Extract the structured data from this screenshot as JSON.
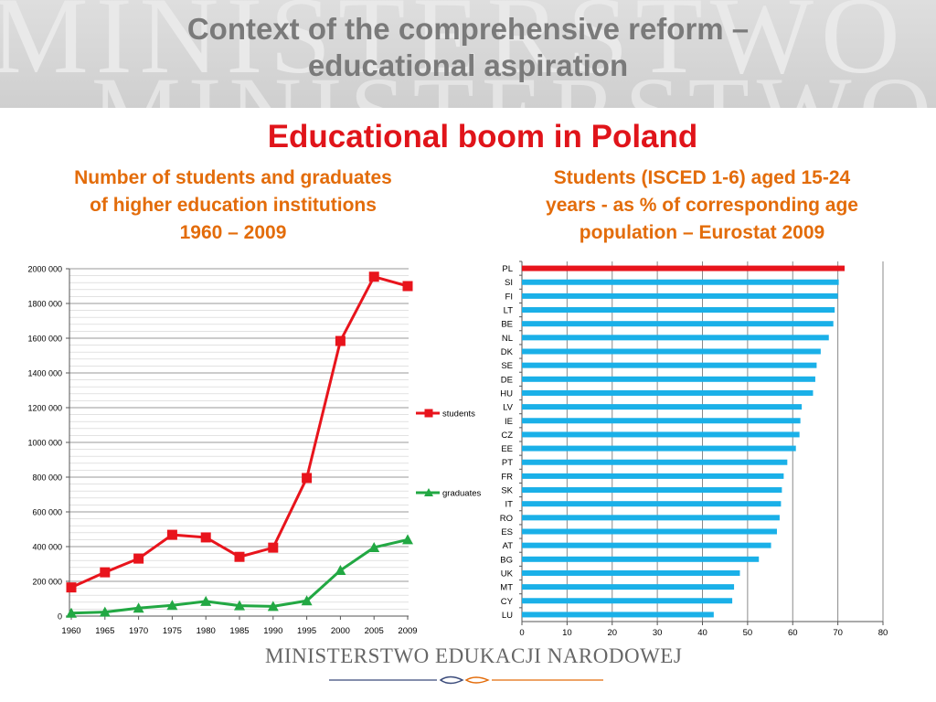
{
  "header": {
    "title_line1": "Context of the comprehensive reform –",
    "title_line2": "educational aspiration",
    "watermark_line1": "MINISTERSTWO",
    "watermark_line2": "MINISTERSTWO"
  },
  "subtitle": "Educational boom in Poland",
  "colors": {
    "title_gray": "#7a7a7a",
    "subtitle_red": "#e0141a",
    "chart_title_orange": "#e36c0a",
    "students_red": "#e8141c",
    "graduates_green": "#22a843",
    "bar_blue": "#1ab0e8",
    "bar_highlight": "#e8141c"
  },
  "footer": {
    "ministry_name": "MINISTERSTWO EDUKACJI NARODOWEJ"
  },
  "chart_data": [
    {
      "type": "line",
      "title_lines": [
        "Number of students and graduates",
        "of higher education institutions",
        "1960 – 2009"
      ],
      "x": [
        "1960",
        "1965",
        "1970",
        "1975",
        "1980",
        "1985",
        "1990",
        "1995",
        "2000",
        "2005",
        "2009"
      ],
      "series": [
        {
          "name": "students",
          "color": "#e8141c",
          "marker": "square",
          "values": [
            165000,
            252000,
            331000,
            468000,
            453000,
            341000,
            394000,
            795000,
            1584000,
            1954000,
            1900000
          ]
        },
        {
          "name": "graduates",
          "color": "#22a843",
          "marker": "triangle",
          "values": [
            17000,
            23000,
            46000,
            62000,
            85000,
            60000,
            56000,
            88000,
            263000,
            395000,
            440000
          ]
        }
      ],
      "ylim": [
        0,
        2000000
      ],
      "y_ticks": [
        0,
        200000,
        400000,
        600000,
        800000,
        1000000,
        1200000,
        1400000,
        1600000,
        1800000,
        2000000
      ],
      "y_tick_labels": [
        "0",
        "200 000",
        "400 000",
        "600 000",
        "800 000",
        "1000 000",
        "1200 000",
        "1400 000",
        "1600 000",
        "1800 000",
        "2000 000"
      ],
      "grid": true,
      "legend": "right"
    },
    {
      "type": "bar",
      "orientation": "horizontal",
      "title_lines": [
        "Students (ISCED 1-6) aged 15-24",
        "years - as % of corresponding age",
        "population – Eurostat 2009"
      ],
      "categories": [
        "PL",
        "SI",
        "FI",
        "LT",
        "BE",
        "NL",
        "DK",
        "SE",
        "DE",
        "HU",
        "LV",
        "IE",
        "CZ",
        "EE",
        "PT",
        "FR",
        "SK",
        "IT",
        "RO",
        "ES",
        "AT",
        "BG",
        "UK",
        "MT",
        "CY",
        "LU"
      ],
      "values": [
        71.5,
        70.2,
        70.0,
        69.3,
        69.0,
        68.0,
        66.2,
        65.3,
        65.0,
        64.5,
        62.0,
        61.7,
        61.5,
        60.7,
        58.8,
        58.0,
        57.6,
        57.4,
        57.1,
        56.5,
        55.2,
        52.5,
        48.3,
        47.0,
        46.6,
        42.5
      ],
      "highlight": "PL",
      "xlim": [
        0,
        80
      ],
      "x_ticks": [
        0,
        10,
        20,
        30,
        40,
        50,
        60,
        70,
        80
      ],
      "grid": true
    }
  ]
}
